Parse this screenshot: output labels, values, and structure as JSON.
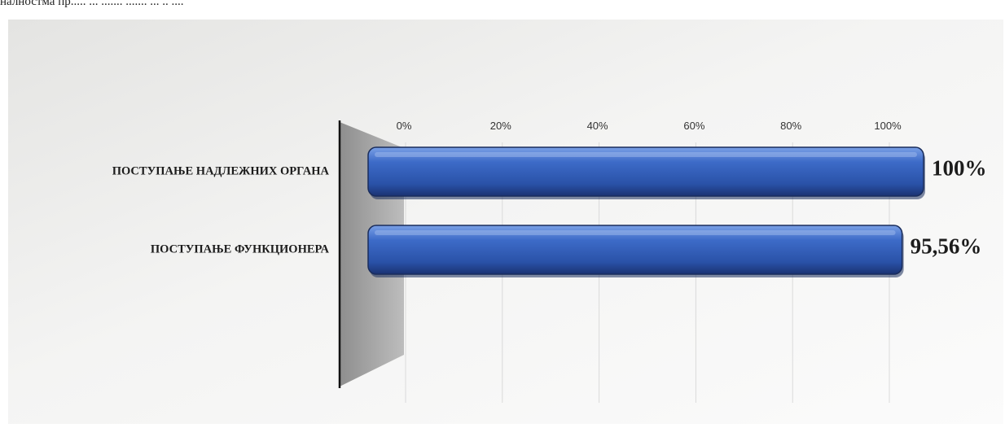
{
  "top_text": "налностма пр..... ... ....... ....... ... .. ....",
  "chart_data": {
    "type": "bar",
    "orientation": "horizontal",
    "categories": [
      "ПОСТУПАЊЕ НАДЛЕЖНИХ ОРГАНА",
      "ПОСТУПАЊЕ ФУНКЦИОНЕРА"
    ],
    "values": [
      100,
      95.56
    ],
    "data_labels": [
      "100%",
      "95,56%"
    ],
    "x_ticks": [
      "0%",
      "20%",
      "40%",
      "60%",
      "80%",
      "100%"
    ],
    "xlim": [
      0,
      100
    ],
    "x_axis_position": "top",
    "grid": true,
    "legend": "none",
    "title": "",
    "xlabel": "",
    "ylabel": "",
    "bar_color": "#2f5fb8",
    "bar_edge_color": "#1a2d5c"
  }
}
